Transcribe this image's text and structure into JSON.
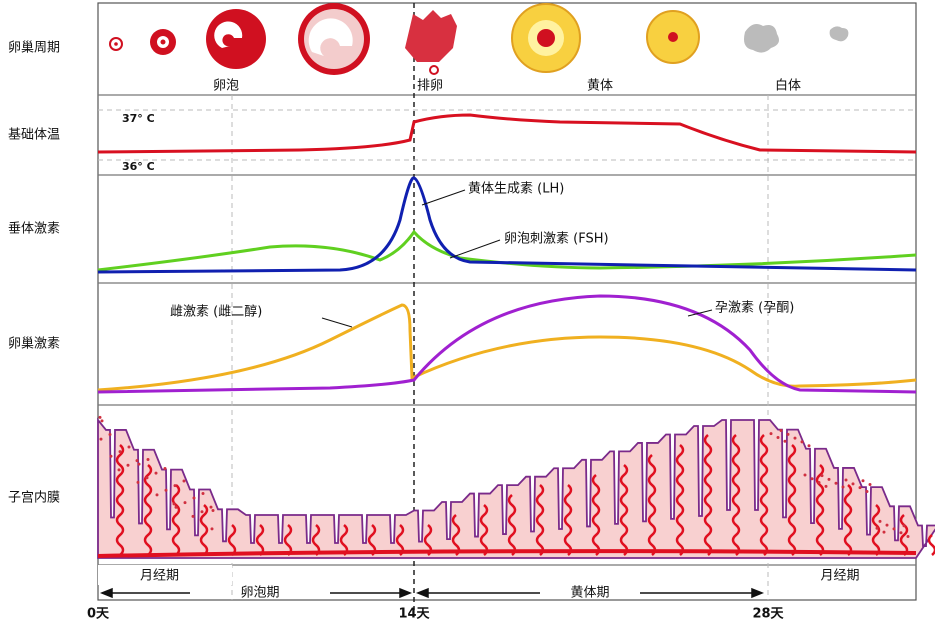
{
  "rows": [
    "卵巢周期",
    "基础体温",
    "垂体激素",
    "卵巢激素",
    "子宫内膜"
  ],
  "ovary_stages": [
    "卵泡",
    "排卵",
    "黄体",
    "白体"
  ],
  "temperature": {
    "high": "37° C",
    "low": "36° C"
  },
  "hormones": {
    "lh": "黄体生成素 (LH)",
    "fsh": "卵泡刺激素 (FSH)",
    "estrogen": "雌激素 (雌二醇)",
    "progesterone": "孕激素 (孕酮)"
  },
  "phases": [
    "月经期",
    "卵泡期",
    "黄体期",
    "月经期"
  ],
  "days": [
    "0天",
    "14天",
    "28天"
  ]
}
